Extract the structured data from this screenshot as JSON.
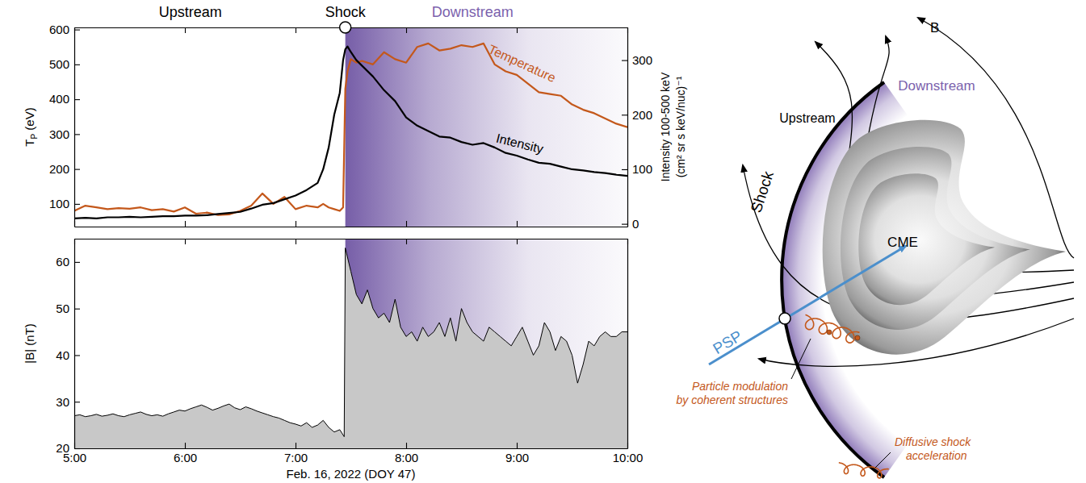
{
  "chart_data": [
    {
      "type": "line",
      "annotations": [
        {
          "text": "Upstream",
          "x": 6.05
        },
        {
          "text": "Shock",
          "x": 7.45
        },
        {
          "text": "Downstream",
          "x": 8.6
        }
      ],
      "shaded_from": 7.45,
      "ylabel": "TP (eV)",
      "y2label": [
        "Intensity 100-500 keV",
        "(cm² sr s keV/nuc)⁻¹"
      ],
      "x": [
        5,
        5.1,
        5.2,
        5.3,
        5.4,
        5.5,
        5.6,
        5.7,
        5.8,
        5.9,
        6,
        6.1,
        6.2,
        6.3,
        6.4,
        6.5,
        6.6,
        6.7,
        6.8,
        6.9,
        7,
        7.1,
        7.2,
        7.25,
        7.3,
        7.35,
        7.4,
        7.43,
        7.45,
        7.47,
        7.5,
        7.55,
        7.6,
        7.7,
        7.8,
        7.9,
        8,
        8.1,
        8.2,
        8.3,
        8.4,
        8.5,
        8.6,
        8.7,
        8.8,
        8.9,
        9,
        9.1,
        9.2,
        9.3,
        9.4,
        9.5,
        9.6,
        9.7,
        9.8,
        9.9,
        10
      ],
      "xlim": [
        5,
        10
      ],
      "xticks": [
        5,
        6,
        7,
        8,
        9,
        10
      ],
      "ylim": [
        35,
        606
      ],
      "yticks": [
        100,
        200,
        300,
        400,
        500,
        600
      ],
      "y2lim": [
        -5,
        360
      ],
      "y2ticks": [
        0,
        100,
        200,
        300
      ],
      "tick_labels": "y",
      "series": [
        {
          "name": "Temperature",
          "color": "#c4581b",
          "values": [
            80,
            95,
            90,
            85,
            88,
            86,
            90,
            82,
            85,
            78,
            90,
            72,
            75,
            68,
            70,
            80,
            95,
            130,
            100,
            120,
            85,
            95,
            90,
            100,
            90,
            85,
            80,
            90,
            430,
            480,
            515,
            505,
            510,
            500,
            535,
            515,
            505,
            550,
            560,
            540,
            545,
            555,
            550,
            560,
            500,
            480,
            470,
            445,
            420,
            415,
            410,
            385,
            370,
            360,
            345,
            330,
            320
          ]
        },
        {
          "name": "Intensity",
          "color": "#000000",
          "axis": "y2",
          "values": [
            10,
            11,
            10,
            12,
            12,
            13,
            12,
            13,
            14,
            14,
            15,
            15,
            16,
            18,
            20,
            22,
            28,
            35,
            38,
            45,
            52,
            62,
            75,
            100,
            140,
            200,
            240,
            300,
            320,
            325,
            315,
            300,
            290,
            270,
            245,
            225,
            195,
            180,
            170,
            160,
            158,
            150,
            145,
            148,
            140,
            130,
            125,
            118,
            112,
            110,
            105,
            100,
            98,
            95,
            93,
            90,
            88
          ]
        }
      ]
    },
    {
      "type": "area",
      "shaded_from": 7.45,
      "ylabel": "|B| (nT)",
      "xlabel": "Feb. 16, 2022 (DOY 47)",
      "x": [
        5,
        5.05,
        5.1,
        5.15,
        5.2,
        5.25,
        5.3,
        5.35,
        5.4,
        5.45,
        5.5,
        5.55,
        5.6,
        5.65,
        5.7,
        5.75,
        5.8,
        5.85,
        5.9,
        5.95,
        6,
        6.05,
        6.1,
        6.15,
        6.2,
        6.25,
        6.3,
        6.35,
        6.4,
        6.45,
        6.5,
        6.55,
        6.6,
        6.65,
        6.7,
        6.75,
        6.8,
        6.85,
        6.9,
        6.95,
        7,
        7.05,
        7.1,
        7.15,
        7.2,
        7.25,
        7.3,
        7.35,
        7.4,
        7.44,
        7.45,
        7.5,
        7.55,
        7.6,
        7.65,
        7.7,
        7.75,
        7.8,
        7.85,
        7.9,
        7.95,
        8,
        8.05,
        8.1,
        8.15,
        8.2,
        8.25,
        8.3,
        8.35,
        8.4,
        8.45,
        8.5,
        8.55,
        8.6,
        8.65,
        8.7,
        8.75,
        8.8,
        8.85,
        8.9,
        8.95,
        9,
        9.05,
        9.1,
        9.15,
        9.2,
        9.25,
        9.3,
        9.35,
        9.4,
        9.45,
        9.5,
        9.55,
        9.6,
        9.65,
        9.7,
        9.75,
        9.8,
        9.85,
        9.9,
        9.95,
        10
      ],
      "xlim": [
        5,
        10
      ],
      "xticks": [
        {
          "value": 5,
          "label": "5:00"
        },
        {
          "value": 6,
          "label": "6:00"
        },
        {
          "value": 7,
          "label": "7:00"
        },
        {
          "value": 8,
          "label": "8:00"
        },
        {
          "value": 9,
          "label": "9:00"
        },
        {
          "value": 10,
          "label": "10:00"
        }
      ],
      "ylim": [
        20,
        65
      ],
      "yticks": [
        20,
        30,
        40,
        50,
        60
      ],
      "series": [
        {
          "color": "#000000",
          "values": [
            27,
            27.2,
            26.8,
            27,
            27.3,
            26.9,
            27.1,
            27.4,
            27,
            26.8,
            27.2,
            27.5,
            27.8,
            27.3,
            27,
            27.2,
            26.9,
            27.4,
            27.8,
            28.2,
            28,
            28.5,
            28.9,
            29.3,
            28.8,
            28.2,
            28.6,
            29.1,
            29.5,
            28.7,
            28.3,
            28.9,
            28.5,
            28,
            27.6,
            27.2,
            26.8,
            26.5,
            26,
            25.5,
            25.2,
            24.8,
            25.5,
            24.5,
            25,
            26,
            24.5,
            23.5,
            24,
            22.5,
            63,
            58,
            53,
            51,
            54,
            50,
            48,
            49,
            47,
            52,
            46,
            44,
            45,
            43,
            46,
            44,
            45,
            47,
            44,
            48,
            43,
            50,
            47,
            45,
            44,
            43,
            46,
            45,
            44,
            43,
            42,
            44,
            46,
            43,
            40,
            42,
            47,
            45,
            41,
            44,
            43,
            40,
            34,
            38,
            43,
            42,
            44,
            45,
            44,
            44,
            45,
            45
          ]
        }
      ]
    }
  ],
  "diagram": {
    "labels": {
      "shock": "Shock",
      "upstream": "Upstream",
      "downstream": "Downstream",
      "cme": "CME",
      "b": "B",
      "psp": "PSP",
      "modulation": [
        "Particle modulation",
        "by coherent structures"
      ],
      "acceleration": [
        "Diffusive shock",
        "acceleration"
      ]
    }
  }
}
